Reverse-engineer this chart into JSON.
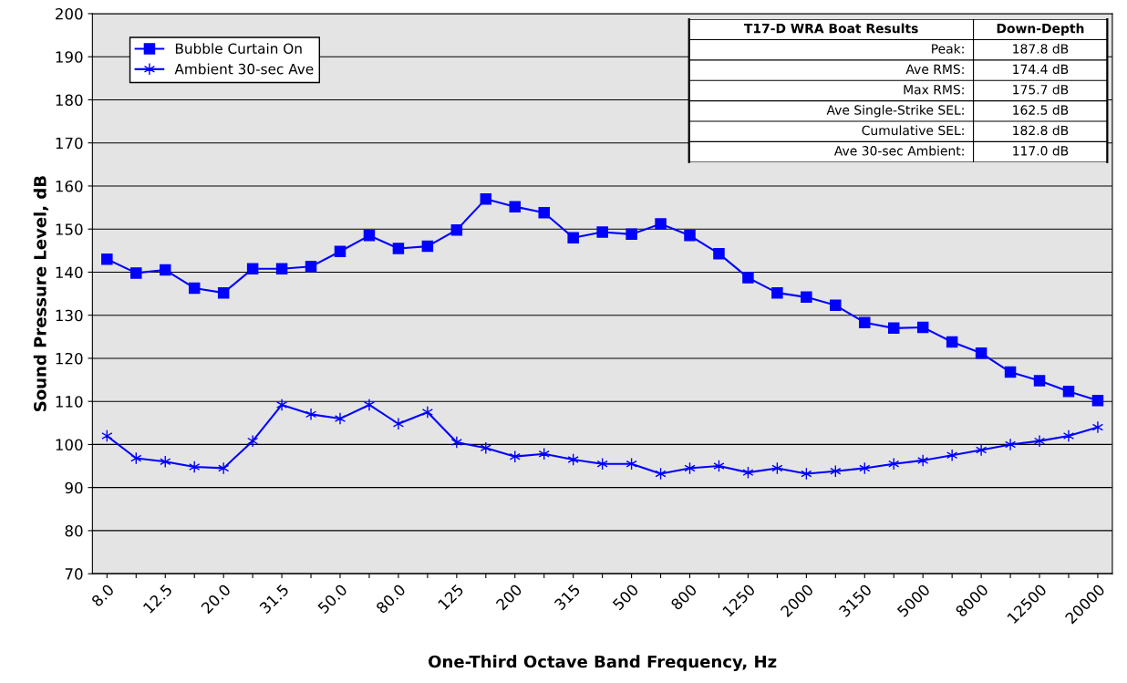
{
  "chart_data": {
    "type": "line",
    "xlabel": "One-Third Octave Band Frequency, Hz",
    "ylabel": "Sound Pressure Level, dB",
    "categories": [
      "8.0",
      null,
      "12.5",
      null,
      "20.0",
      null,
      "31.5",
      null,
      "50.0",
      null,
      "80.0",
      null,
      "125",
      null,
      "200",
      null,
      "315",
      null,
      "500",
      null,
      "800",
      null,
      "1250",
      null,
      "2000",
      null,
      "3150",
      null,
      "5000",
      null,
      "8000",
      null,
      "12500",
      null,
      "20000"
    ],
    "series": [
      {
        "name": "Bubble Curtain On",
        "color": "#0000ff",
        "marker": "square",
        "values": [
          143,
          139.8,
          140.5,
          136.3,
          135.2,
          140.8,
          140.8,
          141.3,
          144.8,
          148.5,
          145.5,
          146,
          149.8,
          157,
          155.2,
          153.8,
          148,
          149.3,
          148.8,
          151.2,
          148.5,
          144.3,
          138.7,
          135.2,
          134.2,
          132.3,
          128.3,
          127,
          127.2,
          123.8,
          121.2,
          116.8,
          114.8,
          112.3,
          110.2
        ]
      },
      {
        "name": "Ambient 30-sec Ave",
        "color": "#0000ff",
        "marker": "cross",
        "values": [
          102,
          96.8,
          96,
          94.8,
          94.5,
          100.8,
          109.2,
          107,
          106,
          109.2,
          104.8,
          107.5,
          100.5,
          99.2,
          97.2,
          97.8,
          96.5,
          95.5,
          95.5,
          93.2,
          94.5,
          95,
          93.5,
          94.5,
          93.2,
          93.8,
          94.5,
          95.5,
          96.3,
          97.5,
          98.7,
          100,
          100.8,
          102,
          104
        ]
      }
    ],
    "ylim": [
      70,
      200
    ],
    "yticks": [
      70,
      80,
      90,
      100,
      110,
      120,
      130,
      140,
      150,
      160,
      170,
      180,
      190,
      200
    ],
    "grid": "y",
    "legend": "top left",
    "line_style": "solid",
    "annotations": [
      "T17-D WRA Boat Results",
      "Down-Depth",
      "Peak:",
      "187.8 dB",
      "Ave RMS:",
      "174.4 dB",
      "Max RMS:",
      "175.7 dB",
      "Ave Single-Strike SEL:",
      "162.5 dB",
      "Cumulative SEL:",
      "182.8 dB",
      "Ave 30-sec Ambient:",
      "117.0 dB"
    ]
  }
}
